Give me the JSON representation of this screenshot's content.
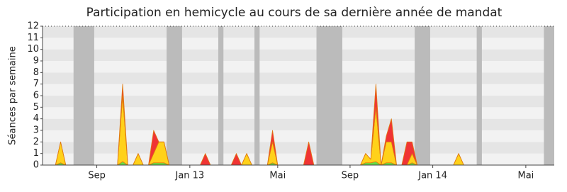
{
  "chart_data": {
    "type": "stacked-area",
    "title": "Participation en hemicycle au cours de sa dernière année de mandat",
    "y_label": "Séances par semaine",
    "categories": [
      null,
      null,
      null,
      null,
      null,
      null,
      null,
      null,
      null,
      null,
      "Sep",
      null,
      null,
      null,
      null,
      null,
      null,
      null,
      null,
      null,
      null,
      null,
      null,
      null,
      null,
      null,
      null,
      null,
      "Jan 13",
      null,
      null,
      null,
      null,
      null,
      null,
      null,
      null,
      null,
      null,
      null,
      null,
      null,
      null,
      null,
      null,
      "Mai",
      null,
      null,
      null,
      null,
      null,
      null,
      null,
      null,
      null,
      null,
      null,
      null,
      null,
      "Sep",
      null,
      null,
      null,
      null,
      null,
      null,
      null,
      null,
      null,
      null,
      null,
      null,
      null,
      null,
      null,
      "Jan 14",
      null,
      null,
      null,
      null,
      null,
      null,
      null,
      null,
      null,
      null,
      null,
      null,
      null,
      null,
      null,
      null,
      null,
      "Mai",
      null,
      null,
      null,
      null,
      null
    ],
    "series": [
      {
        "color": "#66dd44",
        "values": [
          0,
          0,
          0,
          0.2,
          0,
          0,
          0,
          0,
          0,
          0,
          0,
          0,
          0,
          0,
          0,
          0.3,
          0,
          0,
          0,
          0,
          0,
          0.2,
          0.2,
          0.2,
          0,
          0,
          0,
          0,
          0,
          0,
          0,
          0,
          0,
          0,
          0,
          0,
          0,
          0,
          0,
          0,
          0,
          0,
          0,
          0,
          0.2,
          0,
          0,
          0,
          0,
          0,
          0,
          0,
          0,
          0,
          0,
          0,
          0,
          0,
          0,
          0,
          0,
          0,
          0.2,
          0.2,
          0.3,
          0,
          0.2,
          0.2,
          0,
          0,
          0,
          0.2,
          0,
          0,
          0,
          0,
          0,
          0,
          0,
          0,
          0,
          0,
          0,
          0,
          0,
          0,
          0,
          0,
          0,
          0,
          0,
          0,
          0,
          0,
          0,
          0,
          0,
          0,
          0
        ]
      },
      {
        "color": "#ffd11a",
        "values": [
          0,
          0,
          0,
          1.8,
          0,
          0,
          0,
          0,
          0,
          0,
          0,
          0,
          0,
          0,
          0,
          5.7,
          0,
          0,
          1,
          0,
          0,
          0.8,
          1.8,
          1.8,
          0,
          0,
          0,
          0,
          0,
          0,
          0,
          0,
          0,
          0,
          0,
          0,
          0,
          0,
          0,
          1,
          0,
          0,
          0,
          0,
          1.8,
          0,
          0,
          0,
          0,
          0,
          0,
          0,
          0,
          0,
          0,
          0,
          0,
          0,
          0,
          0,
          0,
          0,
          0.8,
          0.3,
          4.7,
          0,
          1.8,
          1.8,
          0,
          0,
          0,
          0.8,
          0,
          0,
          0,
          0,
          0,
          0,
          0,
          0,
          1,
          0,
          0,
          0,
          0,
          0,
          0,
          0,
          0,
          0,
          0,
          0,
          0,
          0,
          0,
          0,
          0,
          0,
          0
        ]
      },
      {
        "color": "#f03434",
        "values": [
          0,
          0,
          0,
          0,
          0,
          0,
          0,
          0,
          0,
          0,
          0,
          0,
          0,
          0,
          0,
          1,
          0,
          0,
          0,
          0,
          0,
          2,
          0,
          0,
          0,
          0,
          0,
          0,
          0,
          0,
          0,
          1,
          0,
          0,
          0,
          0,
          0,
          1,
          0,
          0,
          0,
          0,
          0,
          0,
          1,
          0,
          0,
          0,
          0,
          0,
          0,
          2,
          0,
          0,
          0,
          0,
          0,
          0,
          0,
          0,
          0,
          0,
          0,
          0,
          2,
          0,
          0.5,
          2,
          0,
          0,
          2,
          1,
          0,
          0,
          0,
          0,
          0,
          0,
          0,
          0,
          0,
          0,
          0,
          0,
          0,
          0,
          0,
          0,
          0,
          0,
          0,
          0,
          0,
          0,
          0,
          0,
          0,
          0,
          0
        ]
      }
    ],
    "shaded_periods": [
      [
        6,
        9
      ],
      [
        24,
        26
      ],
      [
        34,
        34
      ],
      [
        41,
        41
      ],
      [
        53,
        57
      ],
      [
        72,
        74
      ],
      [
        84,
        84
      ],
      [
        97,
        98
      ]
    ],
    "shade_color": "#bbbbbb",
    "ylim": [
      0,
      12
    ],
    "yticks": [
      0,
      1,
      2,
      3,
      4,
      5,
      6,
      7,
      8,
      9,
      10,
      11,
      12
    ],
    "grid": true
  }
}
